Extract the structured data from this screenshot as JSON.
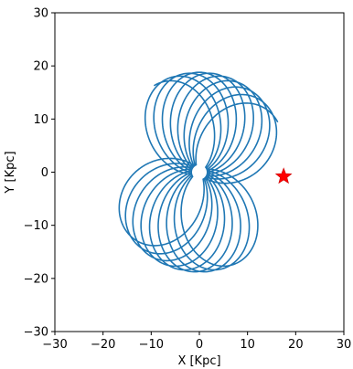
{
  "chart_data": {
    "type": "line",
    "title": "",
    "xlabel": "X [Kpc]",
    "ylabel": "Y [Kpc]",
    "xlim": [
      -30,
      30
    ],
    "ylim": [
      -30,
      30
    ],
    "xticks": [
      -30,
      -20,
      -10,
      0,
      10,
      20,
      30
    ],
    "yticks": [
      -30,
      -20,
      -10,
      0,
      10,
      20,
      30
    ],
    "xtick_labels": [
      "−30",
      "−20",
      "−10",
      "0",
      "10",
      "20",
      "30"
    ],
    "ytick_labels": [
      "−30",
      "−20",
      "−10",
      "0",
      "10",
      "20",
      "30"
    ],
    "grid": false,
    "series": [
      {
        "kind": "orbit",
        "color": "#1f77b4",
        "pericenter_radius": 1.3,
        "apocenter_radius": 18.8,
        "petals": 18
      }
    ],
    "markers": [
      {
        "shape": "star",
        "color": "#ff0000",
        "x": 17.5,
        "y": -0.8
      },
      {
        "shape": "circle",
        "color": "#ffffff",
        "x": 0,
        "y": 0
      }
    ]
  }
}
